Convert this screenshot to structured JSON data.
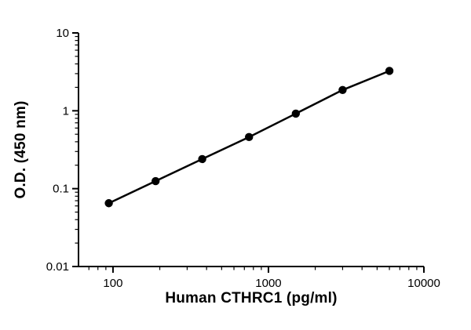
{
  "figure": {
    "background": "#ffffff"
  },
  "chart_data": {
    "type": "line",
    "xlabel": "Human CTHRC1 (pg/ml)",
    "ylabel": "O.D. (450 nm)",
    "x_scale": "log",
    "y_scale": "log",
    "xlim": [
      60,
      10000
    ],
    "ylim": [
      0.01,
      10
    ],
    "x_ticks": [
      {
        "value": 100,
        "label": "100"
      },
      {
        "value": 1000,
        "label": "1000"
      },
      {
        "value": 10000,
        "label": "10000"
      }
    ],
    "y_ticks": [
      {
        "value": 0.01,
        "label": "0.01"
      },
      {
        "value": 0.1,
        "label": "0.1"
      },
      {
        "value": 1,
        "label": "1"
      },
      {
        "value": 10,
        "label": "10"
      }
    ],
    "grid": false,
    "legend_position": "none",
    "axis_color": "#000000",
    "series": [
      {
        "marker": "circle",
        "color": "#000000",
        "line_width": 2.5,
        "marker_radius": 5.2,
        "points": [
          {
            "x": 94,
            "y": 0.065
          },
          {
            "x": 188,
            "y": 0.125
          },
          {
            "x": 375,
            "y": 0.24
          },
          {
            "x": 750,
            "y": 0.46
          },
          {
            "x": 1500,
            "y": 0.92
          },
          {
            "x": 3000,
            "y": 1.85
          },
          {
            "x": 6000,
            "y": 3.25
          }
        ]
      }
    ]
  }
}
